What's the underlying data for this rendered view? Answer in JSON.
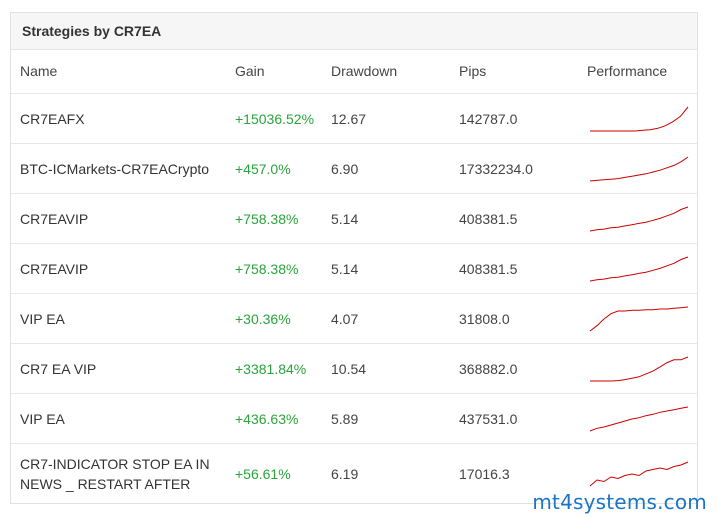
{
  "panel": {
    "title": "Strategies by CR7EA"
  },
  "columns": {
    "name": "Name",
    "gain": "Gain",
    "drawdown": "Drawdown",
    "pips": "Pips",
    "performance": "Performance"
  },
  "rows": [
    {
      "name": "CR7EAFX",
      "gain": "+15036.52%",
      "drawdown": "12.67",
      "pips": "142787.0",
      "perf": [
        0,
        0,
        0,
        0,
        0,
        0,
        0,
        0.5,
        1,
        2,
        4,
        7,
        11,
        18
      ]
    },
    {
      "name": "BTC-ICMarkets-CR7EACrypto",
      "gain": "+457.0%",
      "drawdown": "6.90",
      "pips": "17332234.0",
      "perf": [
        0,
        0.5,
        1,
        1.5,
        2,
        3,
        4,
        5,
        6,
        7.5,
        9,
        11,
        13,
        16,
        20
      ]
    },
    {
      "name": "CR7EAVIP",
      "gain": "+758.38%",
      "drawdown": "5.14",
      "pips": "408381.5",
      "perf": [
        0,
        1,
        1.5,
        2.5,
        3,
        4,
        5,
        6,
        7,
        8.5,
        10,
        12,
        14,
        17,
        19
      ]
    },
    {
      "name": "CR7EAVIP",
      "gain": "+758.38%",
      "drawdown": "5.14",
      "pips": "408381.5",
      "perf": [
        0,
        1,
        1.5,
        2.5,
        3,
        4,
        5,
        6,
        7,
        8.5,
        10,
        12,
        14,
        17,
        19
      ]
    },
    {
      "name": "VIP EA",
      "gain": "+30.36%",
      "drawdown": "4.07",
      "pips": "31808.0",
      "perf": [
        0,
        4,
        9,
        13,
        15,
        15,
        15.5,
        15.5,
        16,
        16,
        16.5,
        16.5,
        17,
        17.5,
        18
      ]
    },
    {
      "name": "CR7 EA VIP",
      "gain": "+3381.84%",
      "drawdown": "10.54",
      "pips": "368882.0",
      "perf": [
        0,
        0,
        0,
        0,
        0.3,
        1,
        2,
        3,
        5,
        7,
        10,
        13,
        15,
        15,
        17
      ]
    },
    {
      "name": "VIP EA",
      "gain": "+436.63%",
      "drawdown": "5.89",
      "pips": "437531.0",
      "perf": [
        0,
        2,
        3,
        4.5,
        6,
        7.5,
        9,
        10,
        11.5,
        12.5,
        14,
        15,
        16,
        17,
        18
      ]
    },
    {
      "name": "CR7-INDICATOR STOP EA IN NEWS _ RESTART AFTER",
      "gain": "+56.61%",
      "drawdown": "6.19",
      "pips": "17016.3",
      "perf": [
        0,
        4,
        3,
        6,
        5,
        7,
        8,
        7,
        10,
        11,
        12,
        11,
        13,
        14,
        16
      ]
    }
  ],
  "watermark": "mt4systems.com",
  "colors": {
    "gain": "#2aa43b",
    "spark": "#cc0000",
    "watermark": "#1b74c6"
  }
}
